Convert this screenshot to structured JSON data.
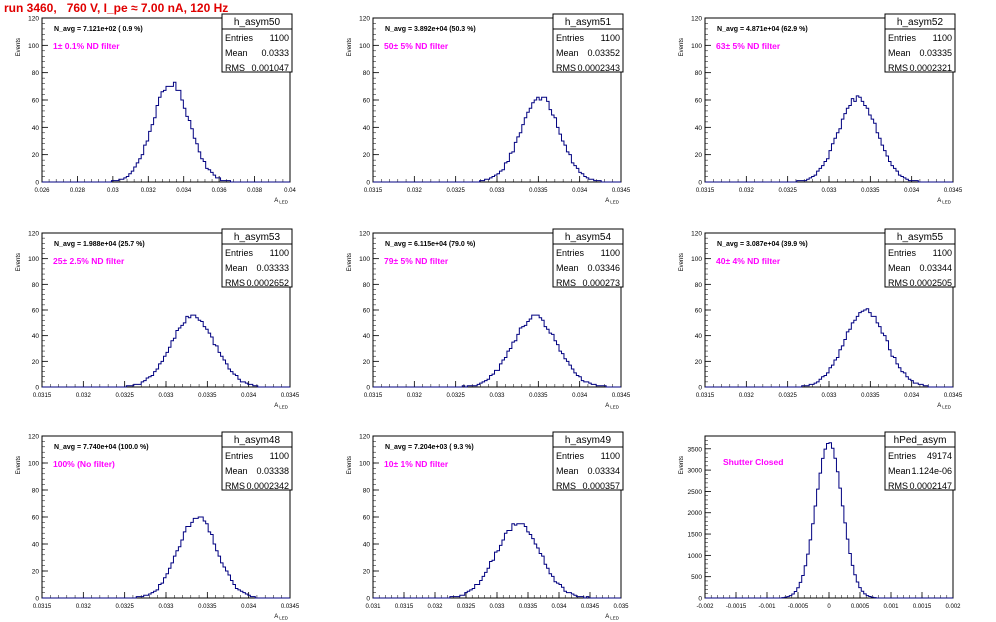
{
  "page": {
    "title": "run 3460,   760 V, I_pe ≈ 7.00 nA, 120 Hz"
  },
  "colors": {
    "histogram": "#000080",
    "filter_label": "#ff00ff",
    "title": "#e00000"
  },
  "chart_data": [
    {
      "type": "histogram",
      "name": "h_asym50",
      "navg": "N_avg = 7.121e+02 ( 0.9 %)",
      "filter": "1± 0.1% ND filter",
      "stats": {
        "entries": "1100",
        "mean": "0.0333",
        "rms": "0.001047"
      },
      "ylabel": "Events",
      "xlabel": "A_LED",
      "xlim": [
        0.026,
        0.04
      ],
      "ylim": [
        0,
        120
      ],
      "xticks": [
        "0.026",
        "0.028",
        "0.03",
        "0.032",
        "0.034",
        "0.036",
        "0.038",
        "0.04"
      ],
      "yticks": [
        "0",
        "20",
        "40",
        "60",
        "80",
        "100",
        "120"
      ],
      "mean": 0.0333,
      "sigma": 0.001047,
      "peak": 72
    },
    {
      "type": "histogram",
      "name": "h_asym51",
      "navg": "N_avg = 3.892e+04 (50.3 %)",
      "filter": "50± 5% ND filter",
      "stats": {
        "entries": "1100",
        "mean": "0.03352",
        "rms": "0.0002343"
      },
      "ylabel": "Events",
      "xlabel": "A_LED",
      "xlim": [
        0.0315,
        0.0345
      ],
      "ylim": [
        0,
        120
      ],
      "xticks": [
        "0.0315",
        "0.032",
        "0.0325",
        "0.033",
        "0.0335",
        "0.034",
        "0.0345"
      ],
      "yticks": [
        "0",
        "20",
        "40",
        "60",
        "80",
        "100",
        "120"
      ],
      "mean": 0.03352,
      "sigma": 0.0002343,
      "peak": 62
    },
    {
      "type": "histogram",
      "name": "h_asym52",
      "navg": "N_avg = 4.871e+04 (62.9 %)",
      "filter": "63± 5% ND filter",
      "stats": {
        "entries": "1100",
        "mean": "0.03335",
        "rms": "0.0002321"
      },
      "ylabel": "Events",
      "xlabel": "A_LED",
      "xlim": [
        0.0315,
        0.0345
      ],
      "ylim": [
        0,
        120
      ],
      "xticks": [
        "0.0315",
        "0.032",
        "0.0325",
        "0.033",
        "0.0335",
        "0.034",
        "0.0345"
      ],
      "yticks": [
        "0",
        "20",
        "40",
        "60",
        "80",
        "100",
        "120"
      ],
      "mean": 0.03335,
      "sigma": 0.0002321,
      "peak": 62
    },
    {
      "type": "histogram",
      "name": "h_asym53",
      "navg": "N_avg = 1.988e+04 (25.7 %)",
      "filter": "25± 2.5% ND filter",
      "stats": {
        "entries": "1100",
        "mean": "0.03333",
        "rms": "0.0002652"
      },
      "ylabel": "Events",
      "xlabel": "A_LED",
      "xlim": [
        0.0315,
        0.0345
      ],
      "ylim": [
        0,
        120
      ],
      "xticks": [
        "0.0315",
        "0.032",
        "0.0325",
        "0.033",
        "0.0335",
        "0.034",
        "0.0345"
      ],
      "yticks": [
        "0",
        "20",
        "40",
        "60",
        "80",
        "100",
        "120"
      ],
      "mean": 0.03333,
      "sigma": 0.0002652,
      "peak": 55
    },
    {
      "type": "histogram",
      "name": "h_asym54",
      "navg": "N_avg = 6.115e+04 (79.0 %)",
      "filter": "79± 5% ND filter",
      "stats": {
        "entries": "1100",
        "mean": "0.03346",
        "rms": "0.000273"
      },
      "ylabel": "Events",
      "xlabel": "A_LED",
      "xlim": [
        0.0315,
        0.0345
      ],
      "ylim": [
        0,
        120
      ],
      "xticks": [
        "0.0315",
        "0.032",
        "0.0325",
        "0.033",
        "0.0335",
        "0.034",
        "0.0345"
      ],
      "yticks": [
        "0",
        "20",
        "40",
        "60",
        "80",
        "100",
        "120"
      ],
      "mean": 0.03346,
      "sigma": 0.000273,
      "peak": 54
    },
    {
      "type": "histogram",
      "name": "h_asym55",
      "navg": "N_avg = 3.087e+04 (39.9 %)",
      "filter": "40± 4% ND filter",
      "stats": {
        "entries": "1100",
        "mean": "0.03344",
        "rms": "0.0002505"
      },
      "ylabel": "Events",
      "xlabel": "A_LED",
      "xlim": [
        0.0315,
        0.0345
      ],
      "ylim": [
        0,
        120
      ],
      "xticks": [
        "0.0315",
        "0.032",
        "0.0325",
        "0.033",
        "0.0335",
        "0.034",
        "0.0345"
      ],
      "yticks": [
        "0",
        "20",
        "40",
        "60",
        "80",
        "100",
        "120"
      ],
      "mean": 0.03344,
      "sigma": 0.0002505,
      "peak": 60
    },
    {
      "type": "histogram",
      "name": "h_asym48",
      "navg": "N_avg = 7.740e+04 (100.0 %)",
      "filter": "100% (No filter)",
      "stats": {
        "entries": "1100",
        "mean": "0.03338",
        "rms": "0.0002342"
      },
      "ylabel": "Events",
      "xlabel": "A_LED",
      "xlim": [
        0.0315,
        0.0345
      ],
      "ylim": [
        0,
        120
      ],
      "xticks": [
        "0.0315",
        "0.032",
        "0.0325",
        "0.033",
        "0.0335",
        "0.034",
        "0.0345"
      ],
      "yticks": [
        "0",
        "20",
        "40",
        "60",
        "80",
        "100",
        "120"
      ],
      "mean": 0.03338,
      "sigma": 0.0002342,
      "peak": 60
    },
    {
      "type": "histogram",
      "name": "h_asym49",
      "navg": "N_avg = 7.204e+03 ( 9.3 %)",
      "filter": "10± 1% ND filter",
      "stats": {
        "entries": "1100",
        "mean": "0.03334",
        "rms": "0.000357"
      },
      "ylabel": "Events",
      "xlabel": "A_LED",
      "xlim": [
        0.031,
        0.035
      ],
      "ylim": [
        0,
        120
      ],
      "xticks": [
        "0.031",
        "0.0315",
        "0.032",
        "0.0325",
        "0.033",
        "0.0335",
        "0.034",
        "0.0345",
        "0.035"
      ],
      "yticks": [
        "0",
        "20",
        "40",
        "60",
        "80",
        "100",
        "120"
      ],
      "mean": 0.03334,
      "sigma": 0.000357,
      "peak": 55
    },
    {
      "type": "histogram",
      "name": "hPed_asym",
      "navg": "",
      "filter": "Shutter Closed",
      "stats": {
        "entries": "49174",
        "mean": "1.124e-06",
        "rms": "0.0002147"
      },
      "ylabel": "Events",
      "xlabel": "",
      "xlim": [
        -0.002,
        0.002
      ],
      "ylim": [
        0,
        3800
      ],
      "xticks": [
        "-0.002",
        "-0.0015",
        "-0.001",
        "-0.0005",
        "0",
        "0.0005",
        "0.001",
        "0.0015",
        "0.002"
      ],
      "yticks": [
        "0",
        "500",
        "1000",
        "1500",
        "2000",
        "2500",
        "3000",
        "3500"
      ],
      "mean": 1.124e-06,
      "sigma": 0.0002147,
      "peak": 3650
    }
  ]
}
